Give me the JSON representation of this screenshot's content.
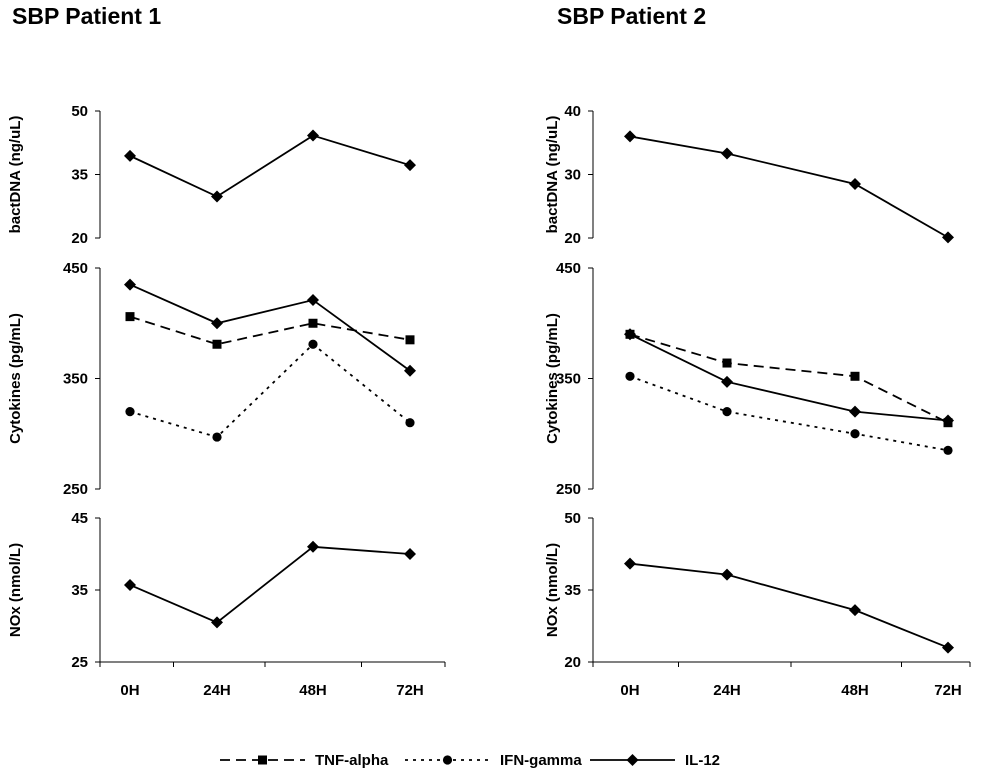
{
  "chart_data": [
    {
      "type": "line",
      "title": "SBP Patient 1",
      "categories": [
        "0H",
        "24H",
        "48H",
        "72H"
      ],
      "panels": [
        {
          "ylabel": "bactDNA (ng/uL)",
          "ylim": [
            20,
            50
          ],
          "yticks": [
            "20",
            "35",
            "50"
          ],
          "series": [
            {
              "name": "IL-12",
              "values": [
                39.4,
                29.8,
                44.2,
                37.2
              ]
            }
          ]
        },
        {
          "ylabel": "Cytokines (pg/mL)",
          "ylim": [
            250,
            450
          ],
          "yticks": [
            "250",
            "350",
            "450"
          ],
          "series": [
            {
              "name": "TNF-alpha",
              "values": [
                406,
                381,
                400,
                385
              ]
            },
            {
              "name": "IFN-gamma",
              "values": [
                320,
                297,
                381,
                310
              ]
            },
            {
              "name": "IL-12",
              "values": [
                435,
                400,
                421,
                357
              ]
            }
          ]
        },
        {
          "ylabel": "NOx (nmol/L)",
          "ylim": [
            25,
            45
          ],
          "yticks": [
            "25",
            "35",
            "45"
          ],
          "series": [
            {
              "name": "IL-12",
              "values": [
                35.7,
                30.5,
                41.0,
                40.0
              ]
            }
          ]
        }
      ]
    },
    {
      "type": "line",
      "title": "SBP Patient 2",
      "categories": [
        "0H",
        "24H",
        "48H",
        "72H"
      ],
      "panels": [
        {
          "ylabel": "bactDNA (ng/uL)",
          "ylim": [
            20,
            40
          ],
          "yticks": [
            "20",
            "30",
            "40"
          ],
          "series": [
            {
              "name": "IL-12",
              "values": [
                36.0,
                33.3,
                28.5,
                20.1
              ]
            }
          ]
        },
        {
          "ylabel": "Cytokines (pg/mL)",
          "ylim": [
            250,
            450
          ],
          "yticks": [
            "250",
            "350",
            "450"
          ],
          "series": [
            {
              "name": "TNF-alpha",
              "values": [
                390,
                364,
                352,
                310
              ]
            },
            {
              "name": "IFN-gamma",
              "values": [
                352,
                320,
                300,
                285
              ]
            },
            {
              "name": "IL-12",
              "values": [
                390,
                347,
                320,
                312
              ]
            }
          ]
        },
        {
          "ylabel": "NOx (nmol/L)",
          "ylim": [
            20,
            50
          ],
          "yticks": [
            "20",
            "35",
            "50"
          ],
          "series": [
            {
              "name": "IL-12",
              "values": [
                40.5,
                38.2,
                30.8,
                23.0
              ]
            }
          ]
        }
      ]
    }
  ],
  "legend": {
    "placement": "bottom",
    "items": [
      {
        "name": "TNF-alpha",
        "line": "dashed",
        "marker": "square"
      },
      {
        "name": "IFN-gamma",
        "line": "dotted",
        "marker": "circle"
      },
      {
        "name": "IL-12",
        "line": "solid",
        "marker": "diamond"
      }
    ]
  },
  "colors": {
    "ink": "#000000",
    "background": "#ffffff"
  }
}
